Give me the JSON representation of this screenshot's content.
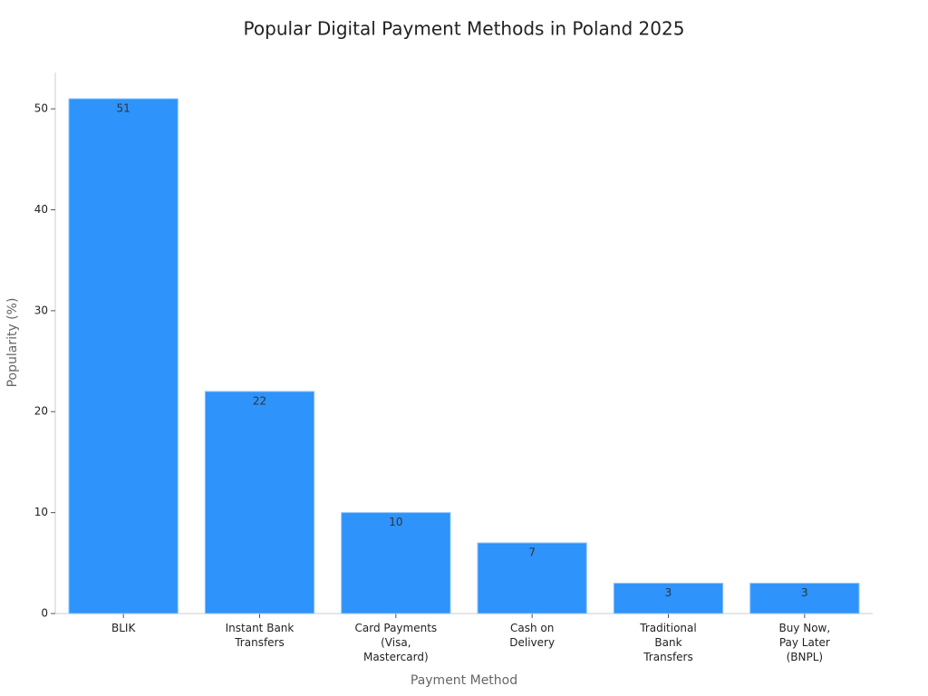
{
  "chart_data": {
    "type": "bar",
    "title": "Popular Digital Payment Methods in Poland 2025",
    "x_label": "Payment Method",
    "y_label": "Popularity (%)",
    "categories": [
      "BLIK",
      "Instant Bank\nTransfers",
      "Card Payments\n(Visa,\nMastercard)",
      "Cash on\nDelivery",
      "Traditional\nBank\nTransfers",
      "Buy Now,\nPay Later\n(BNPL)"
    ],
    "values": [
      51,
      22,
      10,
      7,
      3,
      3
    ],
    "color": "#2e93fa",
    "ylim": [
      0,
      53.6
    ],
    "yticks": [
      0,
      10,
      20,
      30,
      40,
      50
    ],
    "grid": false
  }
}
